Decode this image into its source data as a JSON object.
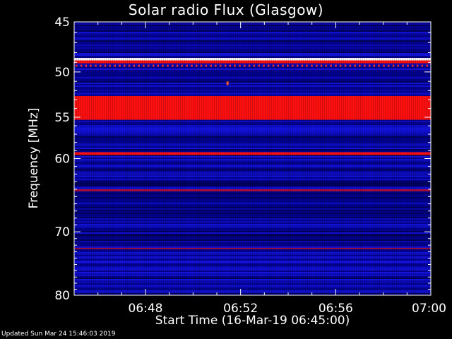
{
  "chart_data": {
    "type": "heatmap",
    "title": "Solar radio Flux (Glasgow)",
    "xlabel": "Start Time (16-Mar-19 06:45:00)",
    "ylabel": "Frequency [MHz]",
    "x_ticks": [
      "06:48",
      "06:52",
      "06:56",
      "07:00"
    ],
    "x_tick_minutes": [
      3,
      7,
      11,
      15
    ],
    "xlim_minutes": [
      0,
      15
    ],
    "y_ticks": [
      45,
      50,
      55,
      60,
      70,
      80
    ],
    "ylim": [
      45,
      80
    ],
    "y_scale": "log",
    "colors": {
      "background": "#02028f",
      "blue": "#1a1aff",
      "red": "#ff1010",
      "white": "#ffffff"
    },
    "bands": [
      {
        "freq_from": 48.55,
        "freq_to": 48.8,
        "level": "white"
      },
      {
        "freq_from": 48.8,
        "freq_to": 49.1,
        "level": "red-strong"
      },
      {
        "freq_from": 52.6,
        "freq_to": 55.3,
        "level": "red-strong"
      },
      {
        "freq_from": 59.2,
        "freq_to": 59.55,
        "level": "red-strong"
      },
      {
        "freq_from": 64.0,
        "freq_to": 64.3,
        "level": "red-medium"
      },
      {
        "freq_from": 72.4,
        "freq_to": 72.6,
        "level": "red-medium"
      }
    ],
    "spots": [
      {
        "minute": 6.45,
        "freq": 51.2,
        "level": "orange"
      }
    ]
  },
  "footer": "Updated Sun Mar 24 15:46:03 2019"
}
